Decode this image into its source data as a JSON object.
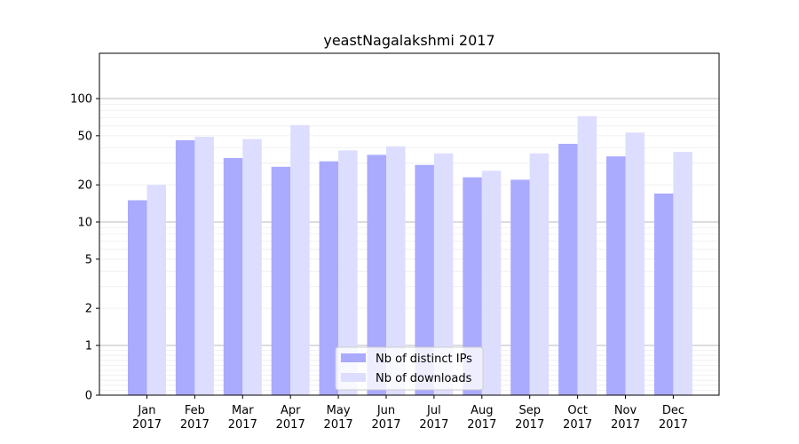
{
  "chart_data": {
    "type": "bar",
    "title": "yeastNagalakshmi 2017",
    "xlabel": "",
    "ylabel": "",
    "yscale": "symlog",
    "ylim": [
      0,
      110
    ],
    "y_ticks": [
      {
        "value": 0,
        "label": "0"
      },
      {
        "value": 1,
        "label": "1"
      },
      {
        "value": 2,
        "label": "2"
      },
      {
        "value": 5,
        "label": "5"
      },
      {
        "value": 10,
        "label": "10"
      },
      {
        "value": 20,
        "label": "20"
      },
      {
        "value": 50,
        "label": "50"
      },
      {
        "value": 100,
        "label": "100"
      }
    ],
    "categories": [
      {
        "month": "Jan",
        "year": "2017"
      },
      {
        "month": "Feb",
        "year": "2017"
      },
      {
        "month": "Mar",
        "year": "2017"
      },
      {
        "month": "Apr",
        "year": "2017"
      },
      {
        "month": "May",
        "year": "2017"
      },
      {
        "month": "Jun",
        "year": "2017"
      },
      {
        "month": "Jul",
        "year": "2017"
      },
      {
        "month": "Aug",
        "year": "2017"
      },
      {
        "month": "Sep",
        "year": "2017"
      },
      {
        "month": "Oct",
        "year": "2017"
      },
      {
        "month": "Nov",
        "year": "2017"
      },
      {
        "month": "Dec",
        "year": "2017"
      }
    ],
    "series": [
      {
        "name": "Nb of distinct IPs",
        "color": "#aaaaff",
        "values": [
          15,
          46,
          33,
          28,
          31,
          35,
          29,
          23,
          22,
          43,
          34,
          17
        ]
      },
      {
        "name": "Nb of downloads",
        "color": "#ddddff",
        "values": [
          20,
          49,
          47,
          61,
          38,
          41,
          36,
          26,
          36,
          72,
          53,
          37
        ]
      }
    ],
    "grid": true,
    "legend_position": "lower center"
  }
}
